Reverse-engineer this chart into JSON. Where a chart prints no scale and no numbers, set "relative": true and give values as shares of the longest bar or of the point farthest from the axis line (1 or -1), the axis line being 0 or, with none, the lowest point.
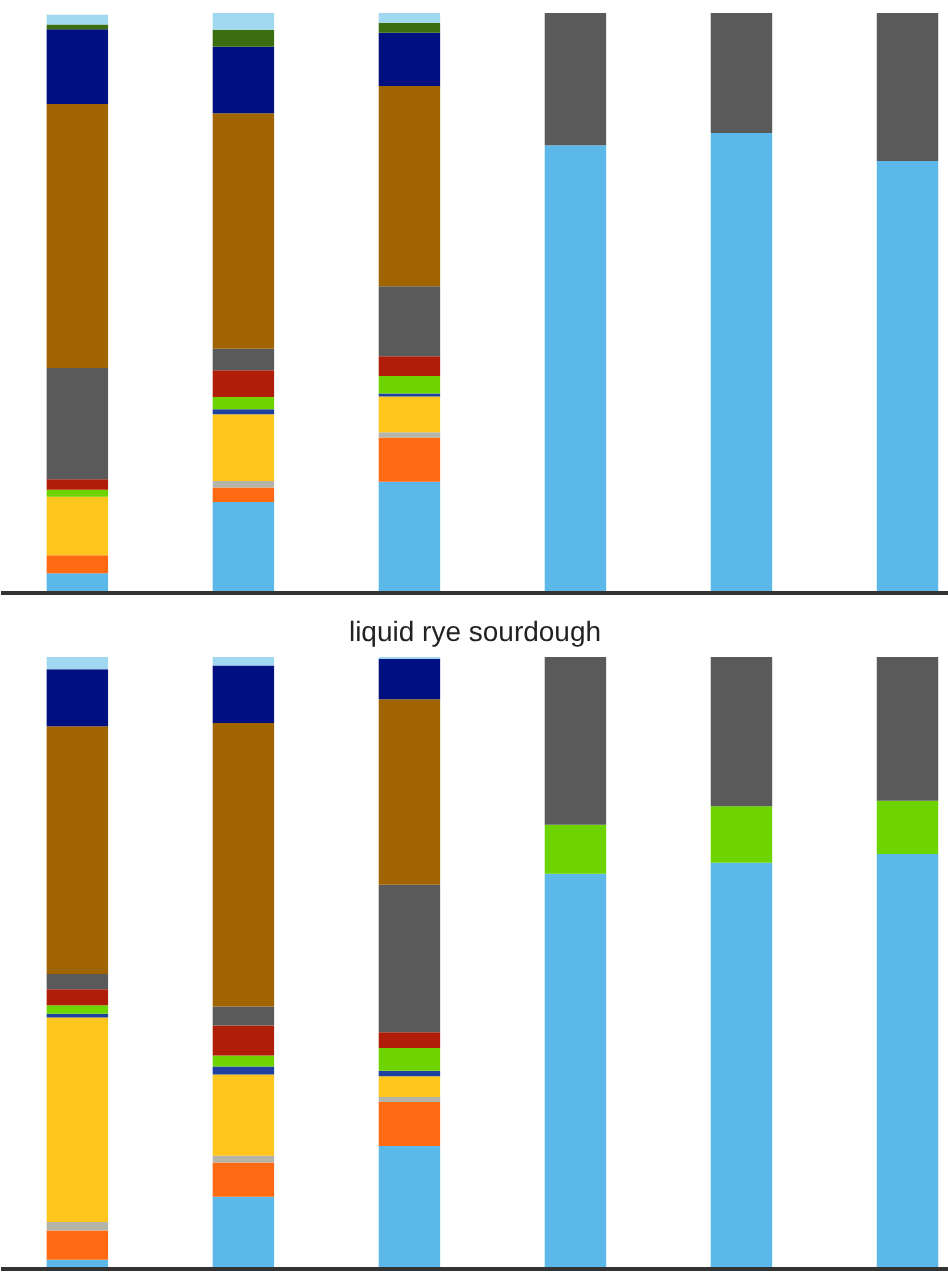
{
  "chart_data": [
    {
      "type": "bar",
      "stacked": true,
      "relative": true,
      "categories": [
        null,
        null,
        null,
        null,
        null,
        null
      ],
      "series": [
        {
          "color": "#5bb8e8",
          "values": [
            0.034,
            0.157,
            0.192,
            0.772,
            0.793,
            0.745
          ]
        },
        {
          "color": "#ff6a13",
          "values": [
            0.031,
            0.025,
            0.076,
            0,
            0,
            0
          ]
        },
        {
          "color": "#b4b4a8",
          "values": [
            null,
            0.011,
            0.009,
            0,
            0,
            0
          ]
        },
        {
          "color": "#ffc61e",
          "values": [
            0.101,
            0.115,
            0.062,
            0,
            0,
            0
          ]
        },
        {
          "color": "#2040a0",
          "values": [
            0,
            0.009,
            0.005,
            0,
            0,
            0
          ]
        },
        {
          "color": "#6dd400",
          "values": [
            0.012,
            0.021,
            0.03,
            0,
            0,
            0
          ]
        },
        {
          "color": "#b01e0a",
          "values": [
            0.018,
            0.046,
            0.034,
            0,
            0,
            0
          ]
        },
        {
          "color": "#5a5a5a",
          "values": [
            0.192,
            0.037,
            0.121,
            0.228,
            0.207,
            0.255
          ]
        },
        {
          "color": "#a06400",
          "values": [
            0.455,
            0.406,
            0.345,
            0,
            0,
            0
          ]
        },
        {
          "color": "#001080",
          "values": [
            0.129,
            0.115,
            0.092,
            0,
            0,
            0
          ]
        },
        {
          "color": "#3a6e10",
          "values": [
            0.008,
            0.029,
            0.017,
            0,
            0,
            0
          ]
        },
        {
          "color": "#a0d8ef",
          "values": [
            0.017,
            0.029,
            0.017,
            0,
            0,
            0
          ]
        }
      ]
    },
    {
      "type": "bar",
      "stacked": true,
      "relative": true,
      "title": "liquid rye sourdough",
      "categories": [
        null,
        null,
        null,
        null,
        null,
        null
      ],
      "series": [
        {
          "color": "#5bb8e8",
          "values": [
            0.015,
            0.118,
            0.201,
            0.646,
            0.664,
            0.678
          ]
        },
        {
          "color": "#ff6a13",
          "values": [
            0.048,
            0.056,
            0.072,
            0,
            0,
            0
          ]
        },
        {
          "color": "#b4b4a8",
          "values": [
            0.014,
            0.011,
            0.008,
            0,
            0,
            0
          ]
        },
        {
          "color": "#ffc61e",
          "values": [
            0.334,
            0.133,
            0.034,
            0,
            0,
            0
          ]
        },
        {
          "color": "#2040a0",
          "values": [
            0.006,
            0.013,
            0.009,
            0,
            0,
            0
          ]
        },
        {
          "color": "#6dd400",
          "values": [
            0.014,
            0.018,
            0.037,
            0.08,
            0.092,
            0.087
          ]
        },
        {
          "color": "#b01e0a",
          "values": [
            0.026,
            0.049,
            0.026,
            0,
            0,
            0
          ]
        },
        {
          "color": "#5a5a5a",
          "values": [
            0.025,
            0.031,
            0.241,
            0.274,
            0.244,
            0.235
          ]
        },
        {
          "color": "#a06400",
          "values": [
            0.405,
            0.463,
            0.303,
            0,
            0,
            0
          ]
        },
        {
          "color": "#001080",
          "values": [
            0.093,
            0.094,
            0.066,
            0,
            0,
            0
          ]
        },
        {
          "color": "#a0d8ef",
          "values": [
            0.02,
            0.014,
            0.003,
            0,
            0,
            0
          ]
        }
      ]
    }
  ]
}
